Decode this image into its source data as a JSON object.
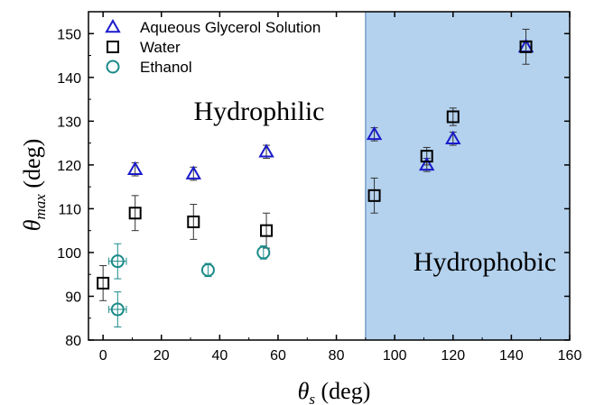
{
  "chart_data": {
    "type": "scatter",
    "xlabel": {
      "symbol": "θ",
      "sub": "s",
      "unit": " (deg)"
    },
    "ylabel": {
      "symbol": "θ",
      "sub": "max",
      "unit": " (deg)"
    },
    "xlim": [
      -5,
      160
    ],
    "ylim": [
      80,
      155
    ],
    "xticks": [
      0,
      20,
      40,
      60,
      80,
      100,
      120,
      140,
      160
    ],
    "yticks": [
      80,
      90,
      100,
      110,
      120,
      130,
      140,
      150
    ],
    "grid": false,
    "legend_position": "top-left",
    "regions": [
      {
        "label": "Hydrophilic",
        "x_from": -5,
        "x_to": 90,
        "shaded": false
      },
      {
        "label": "Hydrophobic",
        "x_from": 90,
        "x_to": 160,
        "shaded": true,
        "color": "#b4d2ee"
      }
    ],
    "series": [
      {
        "name": "Aqueous Glycerol Solution",
        "marker": "triangle",
        "color": "#1a1acc",
        "points": [
          {
            "x": 11,
            "y": 119,
            "yerr": 1.5
          },
          {
            "x": 31,
            "y": 118,
            "yerr": 1.5
          },
          {
            "x": 56,
            "y": 123,
            "yerr": 1.5
          },
          {
            "x": 93,
            "y": 127,
            "yerr": 1.5
          },
          {
            "x": 111,
            "y": 120,
            "yerr": 1.5
          },
          {
            "x": 120,
            "y": 126,
            "yerr": 1.5
          },
          {
            "x": 145,
            "y": 147,
            "yerr": 1
          }
        ]
      },
      {
        "name": "Water",
        "marker": "square",
        "color": "#000000",
        "points": [
          {
            "x": 0,
            "y": 93,
            "yerr": 4
          },
          {
            "x": 11,
            "y": 109,
            "yerr": 4
          },
          {
            "x": 31,
            "y": 107,
            "yerr": 4
          },
          {
            "x": 56,
            "y": 105,
            "yerr": 4
          },
          {
            "x": 93,
            "y": 113,
            "yerr": 4
          },
          {
            "x": 111,
            "y": 122,
            "yerr": 2
          },
          {
            "x": 120,
            "y": 131,
            "yerr": 2
          },
          {
            "x": 145,
            "y": 147,
            "yerr": 4
          }
        ]
      },
      {
        "name": "Ethanol",
        "marker": "circle",
        "color": "#1a8a88",
        "points": [
          {
            "x": 5,
            "y": 98,
            "yerr": 4,
            "xerr": 3
          },
          {
            "x": 5,
            "y": 87,
            "yerr": 4,
            "xerr": 3
          },
          {
            "x": 36,
            "y": 96,
            "yerr": 1.5
          },
          {
            "x": 55,
            "y": 100,
            "yerr": 1.5
          }
        ]
      }
    ]
  }
}
